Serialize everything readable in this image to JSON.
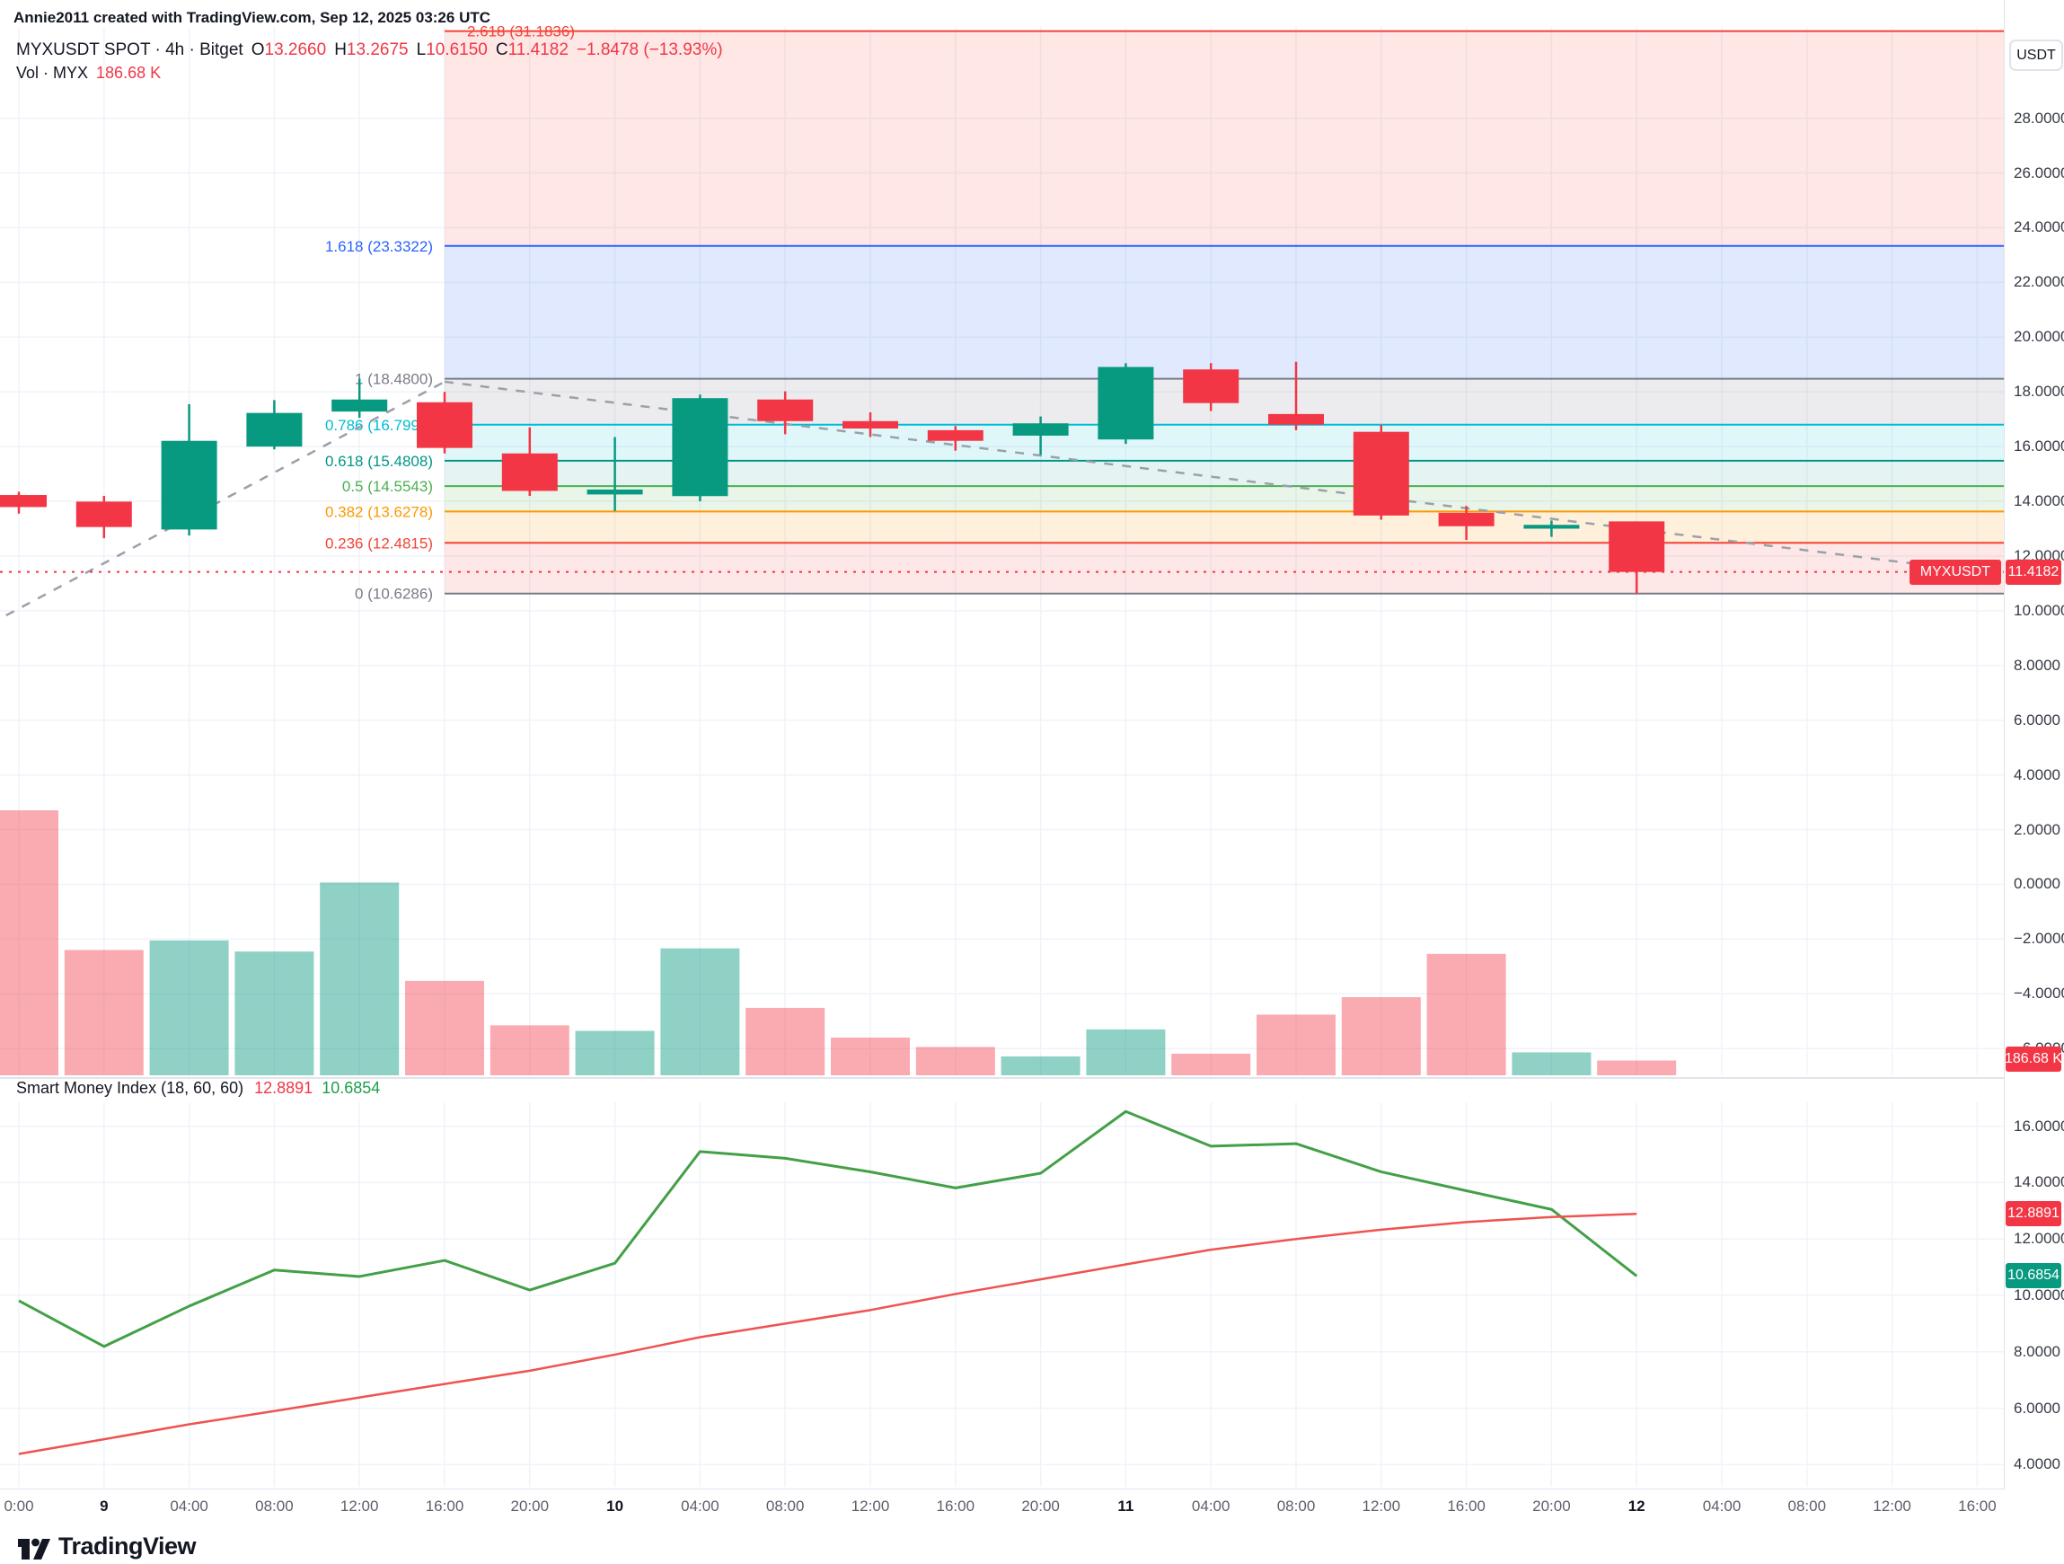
{
  "attribution": "Annie2011 created with TradingView.com, Sep 12, 2025 03:26 UTC",
  "header": {
    "symbol_title": "MYXUSDT SPOT · 4h · Bitget",
    "o_label": "O",
    "o_value": "13.2660",
    "h_label": "H",
    "h_value": "13.2675",
    "l_label": "L",
    "l_value": "10.6150",
    "c_label": "C",
    "c_value": "11.4182",
    "change": "−1.8478 (−13.93%)",
    "volume_label": "Vol · MYX",
    "volume_value": "186.68 K"
  },
  "smi": {
    "title": "Smart Money Index (18, 60, 60)",
    "value_red": "12.8891",
    "value_green": "10.6854"
  },
  "price_label": {
    "symbol": "MYXUSDT",
    "value": "11.4182"
  },
  "volume_axis_label": "186.68 K",
  "axis": {
    "currency": "USDT"
  },
  "logo_text": "TradingView",
  "colors": {
    "up": "#089981",
    "down": "#f23645",
    "accent_blue": "#2962ff",
    "grid": "#f0f3fa",
    "separator": "#e0e3eb"
  },
  "chart_data": [
    {
      "type": "candlestick",
      "title": "MYXUSDT SPOT · 4h · Bitget",
      "interval": "4h",
      "up_color": "#089981",
      "down_color": "#f23645",
      "last_price": 11.4182,
      "price_line_color": "#f23645",
      "y_axis": {
        "position": "right",
        "ticks": [
          {
            "label": "28.0000",
            "value": 28
          },
          {
            "label": "26.0000",
            "value": 26
          },
          {
            "label": "24.0000",
            "value": 24
          },
          {
            "label": "22.0000",
            "value": 22
          },
          {
            "label": "20.0000",
            "value": 20
          },
          {
            "label": "18.0000",
            "value": 18
          },
          {
            "label": "16.0000",
            "value": 16
          },
          {
            "label": "14.0000",
            "value": 14
          },
          {
            "label": "12.0000",
            "value": 12
          },
          {
            "label": "10.0000",
            "value": 10
          },
          {
            "label": "8.0000",
            "value": 8
          },
          {
            "label": "6.0000",
            "value": 6
          },
          {
            "label": "4.0000",
            "value": 4
          },
          {
            "label": "2.0000",
            "value": 2
          },
          {
            "label": "0.0000",
            "value": 0
          },
          {
            "label": "−2.0000",
            "value": -2
          },
          {
            "label": "−4.0000",
            "value": -4
          },
          {
            "label": "−6.0000",
            "value": -6
          }
        ]
      },
      "x_tick_labels": [
        {
          "label": "0:00",
          "bold": false
        },
        {
          "label": "9",
          "bold": true
        },
        {
          "label": "04:00",
          "bold": false
        },
        {
          "label": "08:00",
          "bold": false
        },
        {
          "label": "12:00",
          "bold": false
        },
        {
          "label": "16:00",
          "bold": false
        },
        {
          "label": "20:00",
          "bold": false
        },
        {
          "label": "10",
          "bold": true
        },
        {
          "label": "04:00",
          "bold": false
        },
        {
          "label": "08:00",
          "bold": false
        },
        {
          "label": "12:00",
          "bold": false
        },
        {
          "label": "16:00",
          "bold": false
        },
        {
          "label": "20:00",
          "bold": false
        },
        {
          "label": "11",
          "bold": true
        },
        {
          "label": "04:00",
          "bold": false
        },
        {
          "label": "08:00",
          "bold": false
        },
        {
          "label": "12:00",
          "bold": false
        },
        {
          "label": "16:00",
          "bold": false
        },
        {
          "label": "20:00",
          "bold": false
        },
        {
          "label": "12",
          "bold": true
        },
        {
          "label": "04:00",
          "bold": false
        },
        {
          "label": "08:00",
          "bold": false
        },
        {
          "label": "12:00",
          "bold": false
        },
        {
          "label": "16:00",
          "bold": false
        }
      ],
      "candles": [
        {
          "t": "Sep 8 20:00",
          "o": 14.23,
          "h": 14.35,
          "l": 13.55,
          "c": 13.79
        },
        {
          "t": "Sep 9 00:00",
          "o": 13.99,
          "h": 14.2,
          "l": 12.65,
          "c": 13.06
        },
        {
          "t": "Sep 9 04:00",
          "o": 12.97,
          "h": 17.55,
          "l": 12.75,
          "c": 16.21
        },
        {
          "t": "Sep 9 08:00",
          "o": 16.0,
          "h": 17.7,
          "l": 15.9,
          "c": 17.23
        },
        {
          "t": "Sep 9 12:00",
          "o": 17.28,
          "h": 18.48,
          "l": 17.05,
          "c": 17.72
        },
        {
          "t": "Sep 9 16:00",
          "o": 17.62,
          "h": 18.0,
          "l": 15.75,
          "c": 15.95
        },
        {
          "t": "Sep 9 20:00",
          "o": 15.75,
          "h": 16.7,
          "l": 14.2,
          "c": 14.38
        },
        {
          "t": "Sep 10 00:00",
          "o": 14.25,
          "h": 16.35,
          "l": 13.65,
          "c": 14.43
        },
        {
          "t": "Sep 10 04:00",
          "o": 14.19,
          "h": 17.9,
          "l": 14.0,
          "c": 17.77
        },
        {
          "t": "Sep 10 08:00",
          "o": 17.72,
          "h": 18.02,
          "l": 16.45,
          "c": 16.93
        },
        {
          "t": "Sep 10 12:00",
          "o": 16.93,
          "h": 17.25,
          "l": 16.35,
          "c": 16.66
        },
        {
          "t": "Sep 10 16:00",
          "o": 16.6,
          "h": 16.75,
          "l": 15.85,
          "c": 16.21
        },
        {
          "t": "Sep 10 20:00",
          "o": 16.4,
          "h": 17.1,
          "l": 15.7,
          "c": 16.85
        },
        {
          "t": "Sep 11 00:00",
          "o": 16.26,
          "h": 19.05,
          "l": 16.1,
          "c": 18.91
        },
        {
          "t": "Sep 11 04:00",
          "o": 18.82,
          "h": 19.05,
          "l": 17.3,
          "c": 17.59
        },
        {
          "t": "Sep 11 08:00",
          "o": 17.19,
          "h": 19.1,
          "l": 16.6,
          "c": 16.8
        },
        {
          "t": "Sep 11 12:00",
          "o": 16.54,
          "h": 16.79,
          "l": 13.33,
          "c": 13.48
        },
        {
          "t": "Sep 11 16:00",
          "o": 13.58,
          "h": 13.83,
          "l": 12.59,
          "c": 13.09
        },
        {
          "t": "Sep 11 20:00",
          "o": 13.0,
          "h": 13.3,
          "l": 12.7,
          "c": 13.14
        },
        {
          "t": "Sep 12 00:00",
          "o": 13.266,
          "h": 13.2675,
          "l": 10.615,
          "c": 11.4182
        }
      ],
      "fib": {
        "region_start_index": 5,
        "levels": [
          {
            "ratio": "2.618",
            "label": "2.618 (31.1836)",
            "price": 31.1836,
            "color": "#f44336"
          },
          {
            "ratio": "1.618",
            "label": "1.618 (23.3322)",
            "price": 23.3322,
            "color": "#2962ff"
          },
          {
            "ratio": "1",
            "label": "1 (18.4800)",
            "price": 18.48,
            "color": "#787b86"
          },
          {
            "ratio": "0.786",
            "label": "0.786 (16.7998)",
            "price": 16.7998,
            "color": "#00bcd4"
          },
          {
            "ratio": "0.618",
            "label": "0.618 (15.4808)",
            "price": 15.4808,
            "color": "#009688"
          },
          {
            "ratio": "0.5",
            "label": "0.5 (14.5543)",
            "price": 14.5543,
            "color": "#4caf50"
          },
          {
            "ratio": "0.382",
            "label": "0.382 (13.6278)",
            "price": 13.6278,
            "color": "#ff9800"
          },
          {
            "ratio": "0.236",
            "label": "0.236 (12.4815)",
            "price": 12.4815,
            "color": "#f44336"
          },
          {
            "ratio": "0",
            "label": "0 (10.6286)",
            "price": 10.6286,
            "color": "#787b86"
          }
        ],
        "bands": [
          {
            "top": 31.1836,
            "bottom": 23.3322,
            "color": "rgba(244,67,54,0.13)"
          },
          {
            "top": 23.3322,
            "bottom": 18.48,
            "color": "rgba(41,98,255,0.14)"
          },
          {
            "top": 18.48,
            "bottom": 16.7998,
            "color": "rgba(120,123,134,0.14)"
          },
          {
            "top": 16.7998,
            "bottom": 15.4808,
            "color": "rgba(0,188,212,0.12)"
          },
          {
            "top": 15.4808,
            "bottom": 14.5543,
            "color": "rgba(0,150,136,0.10)"
          },
          {
            "top": 14.5543,
            "bottom": 13.6278,
            "color": "rgba(76,175,80,0.13)"
          },
          {
            "top": 13.6278,
            "bottom": 12.4815,
            "color": "rgba(255,152,0,0.14)"
          },
          {
            "top": 12.4815,
            "bottom": 10.6286,
            "color": "rgba(244,67,54,0.12)"
          }
        ]
      },
      "trendlines": [
        {
          "from": {
            "index": -0.15,
            "price": 9.83
          },
          "to": {
            "index": 5,
            "price": 18.37
          },
          "style": "dashed",
          "color": "#9aa0aa"
        },
        {
          "from": {
            "index": 5,
            "price": 18.37
          },
          "to": {
            "index": 22.65,
            "price": 11.57
          },
          "style": "dashed",
          "color": "#9aa0aa"
        }
      ]
    },
    {
      "type": "bar",
      "name": "Vol · MYX",
      "units": "thousands",
      "max_thousands": 3340,
      "values_thousands": [
        3340,
        1580,
        1700,
        1560,
        2430,
        1190,
        630,
        560,
        1600,
        850,
        475,
        357,
        238,
        578,
        272,
        765,
        985,
        1530,
        289,
        186.68
      ],
      "last_value_label": "186.68 K",
      "up_color": "rgba(8,153,129,0.45)",
      "down_color": "rgba(242,54,69,0.42)"
    },
    {
      "type": "line",
      "name": "Smart Money Index (18, 60, 60)",
      "y_ticks": [
        {
          "label": "16.0000",
          "value": 16
        },
        {
          "label": "14.0000",
          "value": 14
        },
        {
          "label": "12.0000",
          "value": 12
        },
        {
          "label": "10.0000",
          "value": 10
        },
        {
          "label": "8.0000",
          "value": 8
        },
        {
          "label": "6.0000",
          "value": 6
        },
        {
          "label": "4.0000",
          "value": 4
        }
      ],
      "series": [
        {
          "name": "SMI",
          "color": "#43a047",
          "width": 3,
          "values": [
            9.81,
            8.19,
            9.62,
            10.9,
            10.67,
            11.24,
            10.19,
            11.14,
            15.1,
            14.86,
            14.38,
            13.81,
            14.33,
            16.52,
            15.29,
            15.38,
            14.38,
            13.71,
            13.05,
            10.6854
          ],
          "last_label": "10.6854"
        },
        {
          "name": "Signal",
          "color": "#ef5350",
          "width": 2.5,
          "values": [
            4.38,
            4.9,
            5.43,
            5.9,
            6.38,
            6.86,
            7.33,
            7.9,
            8.52,
            9.0,
            9.48,
            10.05,
            10.57,
            11.1,
            11.62,
            12.0,
            12.33,
            12.6,
            12.78,
            12.8891
          ],
          "last_label": "12.8891"
        }
      ]
    }
  ]
}
